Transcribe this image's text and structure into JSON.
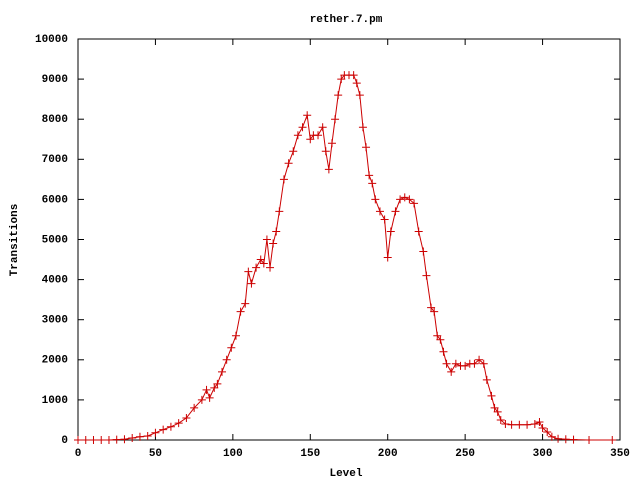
{
  "chart_data": {
    "type": "line",
    "title": "rether.7.pm",
    "x_label": "Level",
    "y_label": "Transitions",
    "x": [
      0,
      5,
      10,
      15,
      20,
      25,
      30,
      35,
      40,
      45,
      50,
      55,
      60,
      65,
      70,
      75,
      80,
      83,
      85,
      88,
      90,
      93,
      96,
      99,
      102,
      105,
      108,
      110,
      112,
      115,
      118,
      120,
      122,
      124,
      126,
      128,
      130,
      133,
      136,
      139,
      142,
      145,
      148,
      150,
      152,
      155,
      158,
      160,
      162,
      164,
      166,
      168,
      170,
      172,
      175,
      178,
      180,
      182,
      184,
      186,
      188,
      190,
      192,
      195,
      198,
      200,
      202,
      205,
      208,
      211,
      214,
      217,
      220,
      223,
      225,
      228,
      230,
      232,
      234,
      236,
      238,
      241,
      244,
      247,
      250,
      253,
      256,
      259,
      262,
      264,
      267,
      269,
      271,
      273,
      276,
      280,
      285,
      290,
      295,
      298,
      300,
      303,
      306,
      310,
      315,
      320,
      330,
      345
    ],
    "series": [
      {
        "name": "rether.7.pm",
        "color": "#cc0000",
        "values": [
          0,
          0,
          0,
          0,
          0,
          10,
          20,
          50,
          80,
          100,
          180,
          260,
          330,
          420,
          550,
          800,
          1000,
          1250,
          1050,
          1300,
          1400,
          1700,
          2000,
          2300,
          2600,
          3200,
          3400,
          4200,
          3900,
          4300,
          4500,
          4400,
          5000,
          4300,
          4900,
          5200,
          5700,
          6500,
          6900,
          7200,
          7600,
          7800,
          8100,
          7500,
          7600,
          7600,
          7800,
          7200,
          6750,
          7400,
          8000,
          8600,
          9000,
          9100,
          9100,
          9100,
          8900,
          8600,
          7800,
          7300,
          6600,
          6400,
          6000,
          5700,
          5500,
          4550,
          5200,
          5700,
          6000,
          6050,
          6000,
          5900,
          5200,
          4700,
          4100,
          3300,
          3200,
          2600,
          2500,
          2200,
          1900,
          1700,
          1900,
          1850,
          1850,
          1900,
          1900,
          2000,
          1900,
          1500,
          1100,
          800,
          700,
          500,
          400,
          380,
          380,
          380,
          400,
          450,
          300,
          200,
          80,
          30,
          20,
          10,
          0,
          0
        ]
      }
    ],
    "xlim": [
      0,
      350
    ],
    "xticks": [
      0,
      50,
      100,
      150,
      200,
      250,
      300,
      350
    ],
    "ylim": [
      0,
      10000
    ],
    "yticks": [
      0,
      1000,
      2000,
      3000,
      4000,
      5000,
      6000,
      7000,
      8000,
      9000,
      10000
    ],
    "grid": false
  }
}
